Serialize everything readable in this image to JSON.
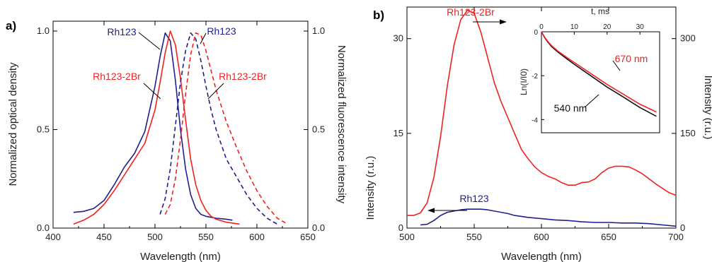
{
  "colors": {
    "rh123": "#1f1f8f",
    "rh123_2br": "#ee2222",
    "axis": "#000000"
  },
  "chart_data": [
    {
      "panel_label": "a)",
      "type": "line",
      "xlabel": "Wavelength (nm)",
      "ylabel": "Normalized optical density",
      "y2label": "Normalized fluorescence intensity",
      "xlim": [
        400,
        650
      ],
      "ylim": [
        0,
        1.05
      ],
      "xticks": [
        "400",
        "450",
        "500",
        "550",
        "600",
        "650"
      ],
      "yticks": [
        "0.0",
        "0.5",
        "1.0"
      ],
      "y2ticks": [
        "0.0",
        "0.5",
        "1.0"
      ],
      "annotations": [
        "Rh123",
        "Rh123-2Br",
        "Rh123",
        "Rh123-2Br"
      ],
      "series": [
        {
          "label": "Rh123",
          "kind": "absorption",
          "style": "solid",
          "color": "#1f1f8f",
          "x": [
            420,
            430,
            440,
            450,
            460,
            470,
            480,
            490,
            500,
            505,
            510,
            515,
            520,
            525,
            530,
            535,
            540,
            545,
            550,
            555,
            560,
            570,
            576
          ],
          "y": [
            0.08,
            0.085,
            0.1,
            0.14,
            0.22,
            0.31,
            0.38,
            0.49,
            0.72,
            0.87,
            0.99,
            0.95,
            0.75,
            0.5,
            0.3,
            0.17,
            0.1,
            0.07,
            0.06,
            0.055,
            0.05,
            0.045,
            0.04
          ]
        },
        {
          "label": "Rh123-2Br",
          "kind": "absorption",
          "style": "solid",
          "color": "#ee2222",
          "x": [
            420,
            430,
            440,
            450,
            460,
            470,
            480,
            490,
            500,
            505,
            510,
            515,
            520,
            525,
            530,
            535,
            540,
            545,
            550,
            555,
            560,
            570,
            583
          ],
          "y": [
            0.02,
            0.04,
            0.07,
            0.12,
            0.19,
            0.27,
            0.35,
            0.43,
            0.6,
            0.74,
            0.89,
            1.0,
            0.93,
            0.76,
            0.55,
            0.35,
            0.22,
            0.14,
            0.09,
            0.06,
            0.045,
            0.03,
            0.02
          ]
        },
        {
          "label": "Rh123",
          "kind": "fluorescence",
          "style": "dashed",
          "color": "#1f1f8f",
          "x": [
            505,
            510,
            515,
            520,
            525,
            530,
            535,
            540,
            545,
            550,
            555,
            560,
            570,
            580,
            590,
            600,
            610,
            620
          ],
          "y": [
            0.07,
            0.15,
            0.3,
            0.52,
            0.74,
            0.9,
            0.99,
            0.96,
            0.85,
            0.72,
            0.6,
            0.5,
            0.35,
            0.26,
            0.17,
            0.1,
            0.05,
            0.02
          ]
        },
        {
          "label": "Rh123-2Br",
          "kind": "fluorescence",
          "style": "dashed",
          "color": "#ee2222",
          "x": [
            510,
            515,
            520,
            525,
            530,
            535,
            540,
            545,
            550,
            555,
            560,
            570,
            580,
            590,
            600,
            610,
            620,
            630
          ],
          "y": [
            0.07,
            0.12,
            0.25,
            0.45,
            0.68,
            0.88,
            0.99,
            0.98,
            0.9,
            0.8,
            0.7,
            0.54,
            0.41,
            0.29,
            0.19,
            0.11,
            0.05,
            0.02
          ]
        }
      ]
    },
    {
      "panel_label": "b)",
      "type": "line",
      "xlabel": "Wavelength (nm)",
      "ylabel": "Intensity (r.u.)",
      "y2label": "Intensity (r.u.)",
      "xlim": [
        500,
        700
      ],
      "ylim": [
        0,
        35
      ],
      "y2lim": [
        0,
        350
      ],
      "xticks": [
        "500",
        "550",
        "600",
        "650",
        "700"
      ],
      "yticks": [
        "0",
        "15",
        "30"
      ],
      "y2ticks": [
        "0",
        "150",
        "300"
      ],
      "series": [
        {
          "label": "Rh123-2Br",
          "axis": "right",
          "color": "#ee2222",
          "x": [
            500,
            505,
            510,
            515,
            520,
            525,
            530,
            535,
            540,
            545,
            550,
            555,
            560,
            565,
            570,
            575,
            580,
            585,
            590,
            595,
            600,
            605,
            610,
            615,
            620,
            625,
            630,
            635,
            640,
            645,
            650,
            655,
            660,
            665,
            670,
            675,
            680,
            685,
            690,
            695,
            700
          ],
          "y": [
            20,
            20,
            24,
            40,
            80,
            145,
            225,
            290,
            330,
            345,
            340,
            310,
            270,
            230,
            200,
            175,
            150,
            125,
            110,
            97,
            88,
            82,
            78,
            72,
            68,
            68,
            72,
            73,
            78,
            88,
            95,
            98,
            98,
            97,
            92,
            86,
            78,
            70,
            63,
            56,
            52
          ]
        },
        {
          "label": "Rh123",
          "axis": "left",
          "color": "#1f1f8f",
          "x": [
            510,
            515,
            520,
            525,
            530,
            535,
            540,
            545,
            550,
            555,
            560,
            565,
            570,
            575,
            580,
            590,
            600,
            610,
            620,
            630,
            640,
            650,
            660,
            670,
            680,
            690,
            700
          ],
          "y": [
            0.5,
            0.6,
            1.2,
            2.0,
            2.5,
            2.7,
            2.9,
            3.0,
            3.0,
            3.0,
            2.9,
            2.7,
            2.5,
            2.3,
            2.0,
            1.7,
            1.5,
            1.3,
            1.2,
            1.0,
            0.9,
            0.9,
            0.8,
            0.8,
            0.7,
            0.5,
            0.3
          ]
        }
      ],
      "annotations": [
        "Rh123-2Br",
        "Rh123"
      ]
    },
    {
      "panel_label": "inset",
      "type": "line",
      "xlabel": "t, ms",
      "ylabel": "Ln(I/I0)",
      "xlim": [
        0,
        36
      ],
      "ylim": [
        -4.6,
        0
      ],
      "xticks": [
        "0",
        "10",
        "20",
        "30"
      ],
      "yticks": [
        "0",
        "-2",
        "-4"
      ],
      "series": [
        {
          "label": "670 nm",
          "color": "#ee2222",
          "x": [
            0,
            1,
            2,
            3,
            5,
            8,
            10,
            15,
            20,
            25,
            30,
            35
          ],
          "y": [
            0,
            -0.25,
            -0.45,
            -0.62,
            -0.88,
            -1.2,
            -1.4,
            -1.9,
            -2.4,
            -2.85,
            -3.3,
            -3.65
          ]
        },
        {
          "label": "540 nm",
          "color": "#111111",
          "x": [
            0,
            1,
            2,
            3,
            5,
            8,
            10,
            15,
            20,
            25,
            30,
            35
          ],
          "y": [
            0,
            -0.27,
            -0.48,
            -0.66,
            -0.92,
            -1.26,
            -1.48,
            -2.0,
            -2.52,
            -2.98,
            -3.45,
            -3.85
          ]
        }
      ]
    }
  ]
}
